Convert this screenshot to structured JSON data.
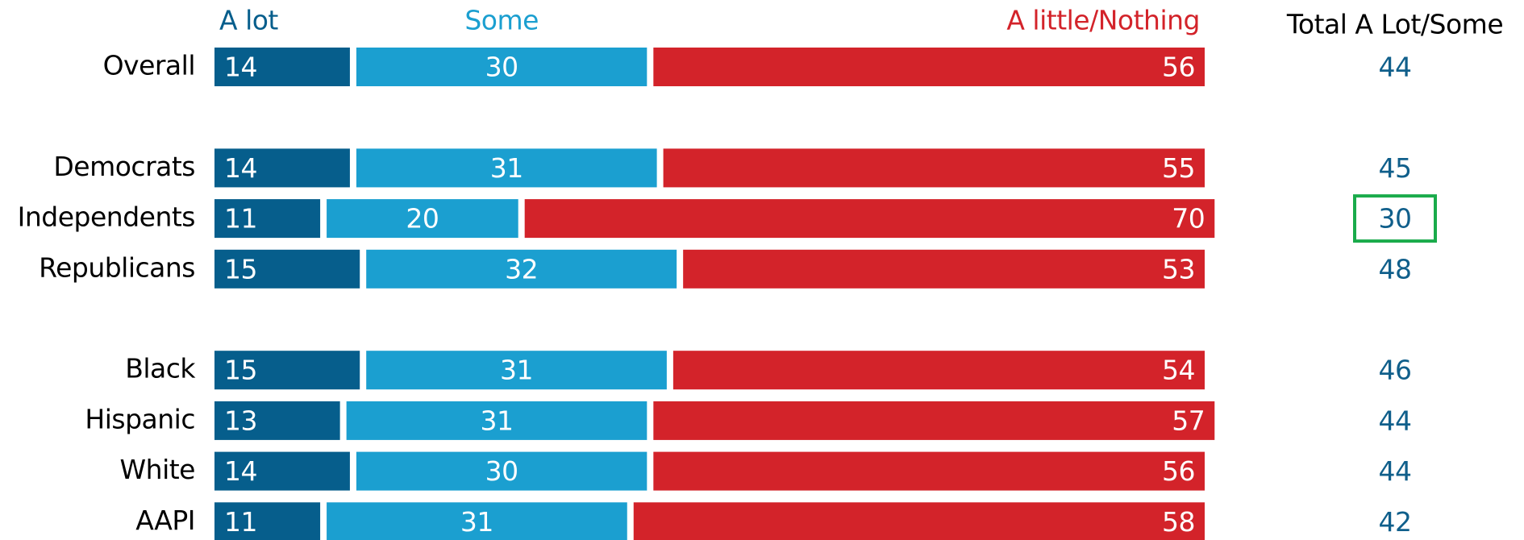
{
  "chart_data": {
    "type": "stacked-bar",
    "categories": [
      "Overall",
      null,
      "Democrats",
      "Independents",
      "Republicans",
      null,
      "Black",
      "Hispanic",
      "White",
      "AAPI"
    ],
    "series": [
      {
        "name": "A lot",
        "color": "#065e8c",
        "values": [
          14,
          null,
          14,
          11,
          15,
          null,
          15,
          13,
          14,
          11
        ]
      },
      {
        "name": "Some",
        "color": "#1b9fd0",
        "values": [
          30,
          null,
          31,
          20,
          32,
          null,
          31,
          31,
          30,
          31
        ]
      },
      {
        "name": "A little/Nothing",
        "color": "#d3232a",
        "values": [
          56,
          null,
          55,
          70,
          53,
          null,
          54,
          57,
          56,
          58
        ]
      }
    ],
    "xlim": [
      0,
      100
    ],
    "totals": {
      "name": "Total A Lot/Some",
      "color": "#105f8b",
      "values": [
        44,
        null,
        45,
        30,
        48,
        null,
        46,
        44,
        44,
        42
      ]
    },
    "highlight": {
      "category": "Independents",
      "color": "#1aab4b"
    }
  }
}
